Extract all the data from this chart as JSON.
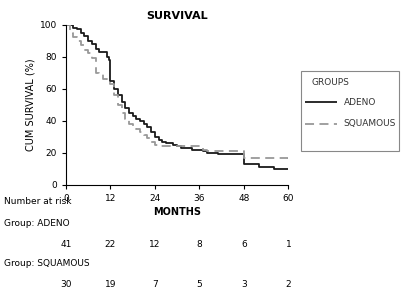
{
  "title": "SURVIVAL",
  "xlabel": "MONTHS",
  "ylabel": "CUM SURVIVAL (%)",
  "xlim": [
    0,
    60
  ],
  "ylim": [
    0,
    100
  ],
  "xticks": [
    0,
    12,
    24,
    36,
    48,
    60
  ],
  "yticks": [
    0,
    20,
    40,
    60,
    80,
    100
  ],
  "adeno_x": [
    0,
    2,
    3,
    4,
    5,
    6,
    7,
    8,
    9,
    10,
    11,
    11.5,
    12,
    13,
    14,
    15,
    16,
    17,
    18,
    19,
    20,
    21,
    22,
    23,
    24,
    25,
    26,
    27,
    28,
    29,
    30,
    31,
    32,
    33,
    34,
    35,
    36,
    37,
    38,
    39,
    40,
    41,
    42,
    43,
    44,
    45,
    46,
    47,
    48,
    50,
    52,
    54,
    56,
    58,
    60
  ],
  "adeno_y": [
    100,
    98,
    97,
    95,
    93,
    90,
    88,
    85,
    83,
    83,
    80,
    78,
    65,
    60,
    56,
    52,
    48,
    45,
    43,
    41,
    40,
    38,
    36,
    33,
    30,
    28,
    27,
    26,
    26,
    25,
    24,
    23,
    23,
    23,
    22,
    22,
    22,
    21,
    20,
    20,
    20,
    19,
    19,
    19,
    19,
    19,
    19,
    19,
    13,
    13,
    11,
    11,
    10,
    10,
    10
  ],
  "squamous_x": [
    0,
    1,
    2,
    3,
    4,
    5,
    6,
    7,
    8,
    9,
    10,
    11,
    12,
    13,
    14,
    15,
    16,
    17,
    18,
    19,
    20,
    21,
    22,
    23,
    24,
    25,
    26,
    27,
    28,
    29,
    30,
    31,
    32,
    33,
    34,
    35,
    36,
    37,
    38,
    39,
    40,
    41,
    42,
    43,
    44,
    45,
    46,
    47,
    48,
    50,
    52,
    54,
    56,
    58,
    60
  ],
  "squamous_y": [
    100,
    95,
    92,
    90,
    87,
    84,
    82,
    79,
    70,
    69,
    66,
    64,
    63,
    56,
    50,
    45,
    41,
    38,
    36,
    35,
    33,
    31,
    29,
    27,
    25,
    24,
    24,
    24,
    24,
    24,
    24,
    24,
    24,
    24,
    24,
    24,
    24,
    22,
    21,
    21,
    21,
    21,
    21,
    21,
    21,
    21,
    21,
    21,
    17,
    17,
    17,
    17,
    17,
    17,
    16
  ],
  "adeno_color": "#1a1a1a",
  "squamous_color": "#999999",
  "legend_title": "GROUPS",
  "legend_adeno": "ADENO",
  "legend_squamous": "SQUAMOUS",
  "number_at_risk_label": "Number at risk",
  "adeno_label": "Group: ADENO",
  "squamous_label": "Group: SQUAMOUS",
  "adeno_risk": [
    41,
    22,
    12,
    8,
    6,
    1
  ],
  "squamous_risk": [
    30,
    19,
    7,
    5,
    3,
    2
  ],
  "risk_times": [
    0,
    12,
    24,
    36,
    48,
    60
  ]
}
